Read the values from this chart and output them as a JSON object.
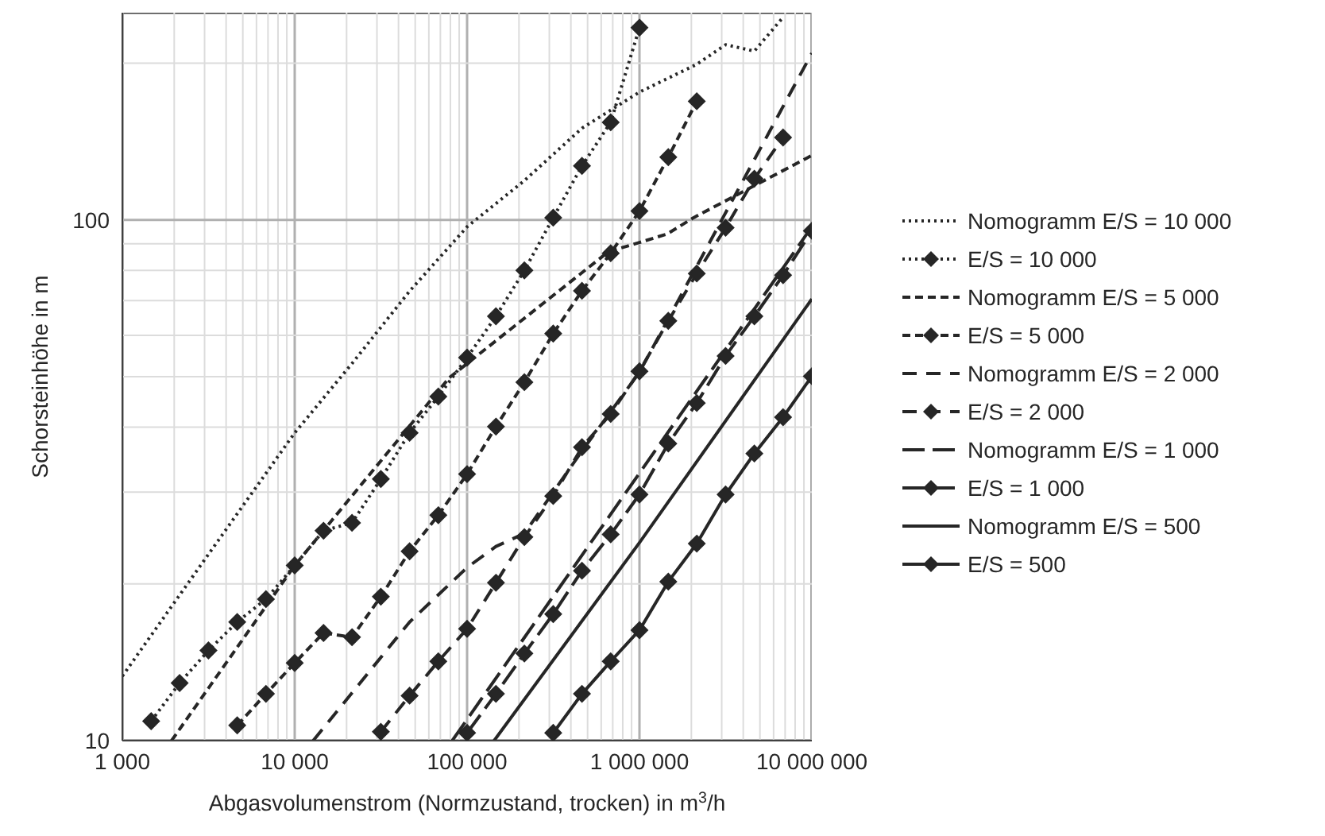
{
  "chart_data": {
    "type": "line",
    "xlabel": "Abgasvolumenstrom (Normzustand, trocken) in m$^{3}$/h",
    "ylabel": "Schorsteinhöhe in m",
    "log": "xy",
    "grid": true,
    "legend": "right",
    "xlim": [
      1000,
      10000000
    ],
    "ylim": [
      10,
      250
    ],
    "xticks": [
      {
        "value": 1000,
        "label": "1 000"
      },
      {
        "value": 2000,
        "label": null
      },
      {
        "value": 3000,
        "label": null
      },
      {
        "value": 4000,
        "label": null
      },
      {
        "value": 5000,
        "label": null
      },
      {
        "value": 6000,
        "label": null
      },
      {
        "value": 7000,
        "label": null
      },
      {
        "value": 8000,
        "label": null
      },
      {
        "value": 9000,
        "label": null
      },
      {
        "value": 10000,
        "label": "10 000"
      },
      {
        "value": 20000,
        "label": null
      },
      {
        "value": 30000,
        "label": null
      },
      {
        "value": 40000,
        "label": null
      },
      {
        "value": 50000,
        "label": null
      },
      {
        "value": 60000,
        "label": null
      },
      {
        "value": 70000,
        "label": null
      },
      {
        "value": 80000,
        "label": null
      },
      {
        "value": 90000,
        "label": null
      },
      {
        "value": 100000,
        "label": "100 000"
      },
      {
        "value": 200000,
        "label": null
      },
      {
        "value": 300000,
        "label": null
      },
      {
        "value": 400000,
        "label": null
      },
      {
        "value": 500000,
        "label": null
      },
      {
        "value": 600000,
        "label": null
      },
      {
        "value": 700000,
        "label": null
      },
      {
        "value": 800000,
        "label": null
      },
      {
        "value": 900000,
        "label": null
      },
      {
        "value": 1000000,
        "label": "1 000 000"
      },
      {
        "value": 2000000,
        "label": null
      },
      {
        "value": 3000000,
        "label": null
      },
      {
        "value": 4000000,
        "label": null
      },
      {
        "value": 5000000,
        "label": null
      },
      {
        "value": 6000000,
        "label": null
      },
      {
        "value": 7000000,
        "label": null
      },
      {
        "value": 8000000,
        "label": null
      },
      {
        "value": 9000000,
        "label": null
      },
      {
        "value": 10000000,
        "label": "10 000 000"
      }
    ],
    "yticks": [
      10,
      {
        "value": 20,
        "label": null
      },
      {
        "value": 30,
        "label": null
      },
      {
        "value": 40,
        "label": null
      },
      {
        "value": 50,
        "label": null
      },
      {
        "value": 60,
        "label": null
      },
      {
        "value": 70,
        "label": null
      },
      {
        "value": 80,
        "label": null
      },
      {
        "value": 90,
        "label": null
      },
      100,
      {
        "value": 200,
        "label": null
      }
    ],
    "series": [
      {
        "name": "Nomogramm E/S = 10 000",
        "color": "#262626",
        "line_style": "dotted",
        "marker": "none",
        "x": [
          1000,
          3160,
          10000,
          21500,
          46400,
          100000,
          215000,
          464000,
          1000000,
          2150000,
          3160000,
          4640000,
          6810000
        ],
        "values": [
          13.3,
          22.8,
          39,
          53,
          73,
          97,
          119,
          150,
          176,
          199,
          217,
          211,
          245
        ]
      },
      {
        "name": "E/S = 10 000",
        "color": "#262626",
        "line_style": "dotted",
        "marker": "diamond",
        "x": [
          1470,
          2150,
          3160,
          4640,
          6810,
          10000,
          14700,
          21500,
          31600,
          46400,
          68100,
          100000,
          147000,
          215000,
          316000,
          464000,
          681000,
          1000000
        ],
        "values": [
          10.9,
          12.9,
          14.9,
          16.9,
          18.7,
          21.7,
          25.3,
          26.2,
          31.8,
          39,
          45.8,
          54.4,
          65.3,
          80,
          101,
          127,
          154,
          234
        ]
      },
      {
        "name": "Nomogramm E/S = 5 000",
        "color": "#262626",
        "line_style": "dashed",
        "marker": "none",
        "x": [
          1930,
          10000,
          79000,
          661000,
          1000000,
          1450000,
          2060000,
          10000000
        ],
        "values": [
          10,
          21.7,
          49.8,
          86.9,
          90.5,
          94,
          101,
          133
        ]
      },
      {
        "name": "E/S = 5 000",
        "color": "#262626",
        "line_style": "dashed",
        "marker": "diamond",
        "x": [
          4640,
          6810,
          10000,
          14700,
          21500,
          31600,
          46400,
          68100,
          100000,
          147000,
          215000,
          316000,
          464000,
          681000,
          1000000,
          1470000,
          2150000
        ],
        "values": [
          10.7,
          12.3,
          14.1,
          16.1,
          15.8,
          18.9,
          23.1,
          27.1,
          32.5,
          40.1,
          48.8,
          60.5,
          73.1,
          86.3,
          104,
          132,
          169
        ]
      },
      {
        "name": "Nomogramm E/S = 2 000",
        "color": "#262626",
        "line_style": "dashed",
        "marker": "none",
        "x": [
          12800,
          46400,
          100000,
          147000,
          215000,
          464000,
          1000000,
          10000000
        ],
        "values": [
          10,
          16.9,
          21.5,
          23.6,
          25,
          36,
          51,
          209
        ]
      },
      {
        "name": "E/S = 2 000",
        "color": "#262626",
        "line_style": "dashed",
        "marker": "diamond",
        "x": [
          31600,
          46400,
          68100,
          100000,
          147000,
          215000,
          316000,
          464000,
          681000,
          1000000,
          1470000,
          2150000,
          3160000,
          4640000,
          6810000
        ],
        "values": [
          10.4,
          12.2,
          14.2,
          16.4,
          20.1,
          24.6,
          29.5,
          36.6,
          42.4,
          51.2,
          64,
          78.9,
          96.6,
          120,
          144
        ]
      },
      {
        "name": "Nomogramm E/S = 1 000",
        "color": "#262626",
        "line_style": "dashed",
        "marker": "none",
        "x": [
          82000,
          10000000
        ],
        "values": [
          10,
          97
        ]
      },
      {
        "name": "E/S = 1 000",
        "color": "#262626",
        "line_style": "dashed",
        "marker": "diamond",
        "x": [
          100000,
          147000,
          215000,
          316000,
          464000,
          681000,
          1000000,
          1470000,
          2150000,
          3160000,
          4640000,
          6810000,
          10000000
        ],
        "values": [
          10.35,
          12.3,
          14.7,
          17.5,
          21.2,
          24.9,
          29.7,
          37.2,
          44.5,
          54.8,
          65.3,
          78.3,
          95.3
        ]
      },
      {
        "name": "Nomogramm E/S = 500",
        "color": "#262626",
        "line_style": "solid",
        "marker": "none",
        "x": [
          143500,
          1000000,
          10000000
        ],
        "values": [
          10,
          24,
          70.5
        ]
      },
      {
        "name": "E/S = 500",
        "color": "#262626",
        "line_style": "solid",
        "marker": "diamond",
        "x": [
          316000,
          464000,
          681000,
          1000000,
          1470000,
          2150000,
          3160000,
          4640000,
          6810000,
          10000000
        ],
        "values": [
          10.35,
          12.3,
          14.2,
          16.3,
          20.2,
          23.9,
          29.7,
          35.6,
          41.8,
          50.1
        ]
      }
    ]
  }
}
